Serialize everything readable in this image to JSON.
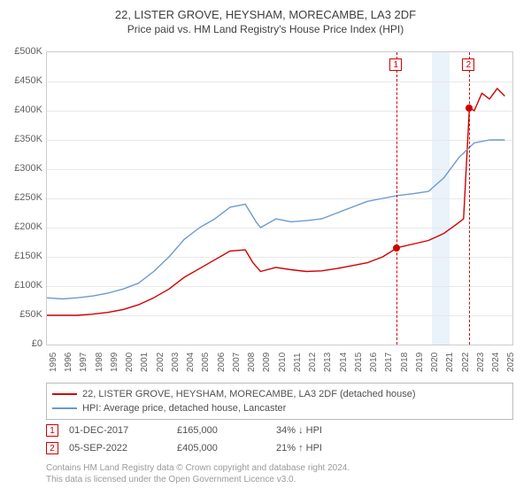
{
  "title_line1": "22, LISTER GROVE, HEYSHAM, MORECAMBE, LA3 2DF",
  "title_line2": "Price paid vs. HM Land Registry's House Price Index (HPI)",
  "chart": {
    "type": "line",
    "background_color": "#ffffff",
    "grid_color": "#e8e8e8",
    "axis_color": "#cccccc",
    "xlim": [
      1995,
      2025.5
    ],
    "ylim": [
      0,
      500000
    ],
    "ytick_step": 50000,
    "ytick_prefix": "£",
    "ytick_suffix": "K",
    "yticks": [
      {
        "v": 0,
        "label": "£0"
      },
      {
        "v": 50000,
        "label": "£50K"
      },
      {
        "v": 100000,
        "label": "£100K"
      },
      {
        "v": 150000,
        "label": "£150K"
      },
      {
        "v": 200000,
        "label": "£200K"
      },
      {
        "v": 250000,
        "label": "£250K"
      },
      {
        "v": 300000,
        "label": "£300K"
      },
      {
        "v": 350000,
        "label": "£350K"
      },
      {
        "v": 400000,
        "label": "£400K"
      },
      {
        "v": 450000,
        "label": "£450K"
      },
      {
        "v": 500000,
        "label": "£500K"
      }
    ],
    "xticks": [
      1995,
      1996,
      1997,
      1998,
      1999,
      2000,
      2001,
      2002,
      2003,
      2004,
      2005,
      2006,
      2007,
      2008,
      2009,
      2010,
      2011,
      2012,
      2013,
      2014,
      2015,
      2016,
      2017,
      2018,
      2019,
      2020,
      2021,
      2022,
      2023,
      2024,
      2025
    ],
    "shaded_band": {
      "from": 2020.2,
      "to": 2021.4,
      "color": "#eaf2fa"
    },
    "vlines_color": "#d00000",
    "label_fontsize": 11,
    "tick_fontsize": 10,
    "line_width": 1.4,
    "series": [
      {
        "name": "price_paid",
        "label": "22, LISTER GROVE, HEYSHAM, MORECAMBE, LA3 2DF (detached house)",
        "color": "#d00000",
        "data": [
          [
            1995,
            50000
          ],
          [
            1996,
            50000
          ],
          [
            1997,
            50000
          ],
          [
            1998,
            52000
          ],
          [
            1999,
            55000
          ],
          [
            2000,
            60000
          ],
          [
            2001,
            68000
          ],
          [
            2002,
            80000
          ],
          [
            2003,
            95000
          ],
          [
            2004,
            115000
          ],
          [
            2005,
            130000
          ],
          [
            2006,
            145000
          ],
          [
            2007,
            160000
          ],
          [
            2008,
            162000
          ],
          [
            2008.5,
            140000
          ],
          [
            2009,
            125000
          ],
          [
            2010,
            132000
          ],
          [
            2011,
            128000
          ],
          [
            2012,
            125000
          ],
          [
            2013,
            126000
          ],
          [
            2014,
            130000
          ],
          [
            2015,
            135000
          ],
          [
            2016,
            140000
          ],
          [
            2017,
            150000
          ],
          [
            2017.92,
            165000
          ],
          [
            2018,
            166000
          ],
          [
            2019,
            172000
          ],
          [
            2020,
            178000
          ],
          [
            2021,
            190000
          ],
          [
            2021.8,
            205000
          ],
          [
            2022.3,
            215000
          ],
          [
            2022.68,
            405000
          ],
          [
            2023,
            400000
          ],
          [
            2023.5,
            430000
          ],
          [
            2024,
            420000
          ],
          [
            2024.5,
            438000
          ],
          [
            2025,
            425000
          ]
        ]
      },
      {
        "name": "hpi",
        "label": "HPI: Average price, detached house, Lancaster",
        "color": "#6b9bd1",
        "data": [
          [
            1995,
            80000
          ],
          [
            1996,
            78000
          ],
          [
            1997,
            80000
          ],
          [
            1998,
            83000
          ],
          [
            1999,
            88000
          ],
          [
            2000,
            95000
          ],
          [
            2001,
            105000
          ],
          [
            2002,
            125000
          ],
          [
            2003,
            150000
          ],
          [
            2004,
            180000
          ],
          [
            2005,
            200000
          ],
          [
            2006,
            215000
          ],
          [
            2007,
            235000
          ],
          [
            2008,
            240000
          ],
          [
            2008.7,
            210000
          ],
          [
            2009,
            200000
          ],
          [
            2010,
            215000
          ],
          [
            2011,
            210000
          ],
          [
            2012,
            212000
          ],
          [
            2013,
            215000
          ],
          [
            2014,
            225000
          ],
          [
            2015,
            235000
          ],
          [
            2016,
            245000
          ],
          [
            2017,
            250000
          ],
          [
            2018,
            255000
          ],
          [
            2019,
            258000
          ],
          [
            2020,
            262000
          ],
          [
            2021,
            285000
          ],
          [
            2022,
            320000
          ],
          [
            2023,
            345000
          ],
          [
            2024,
            350000
          ],
          [
            2025,
            350000
          ]
        ]
      }
    ],
    "sale_markers": [
      {
        "idx": "1",
        "x": 2017.92,
        "y": 165000
      },
      {
        "idx": "2",
        "x": 2022.68,
        "y": 405000
      }
    ]
  },
  "legend": {
    "border_color": "#bbbbbb",
    "rows": [
      {
        "color": "#d00000",
        "label": "22, LISTER GROVE, HEYSHAM, MORECAMBE, LA3 2DF (detached house)"
      },
      {
        "color": "#6b9bd1",
        "label": "HPI: Average price, detached house, Lancaster"
      }
    ]
  },
  "sales": [
    {
      "idx": "1",
      "date": "01-DEC-2017",
      "price": "£165,000",
      "delta": "34% ↓ HPI"
    },
    {
      "idx": "2",
      "date": "05-SEP-2022",
      "price": "£405,000",
      "delta": "21% ↑ HPI"
    }
  ],
  "footer_line1": "Contains HM Land Registry data © Crown copyright and database right 2024.",
  "footer_line2": "This data is licensed under the Open Government Licence v3.0."
}
